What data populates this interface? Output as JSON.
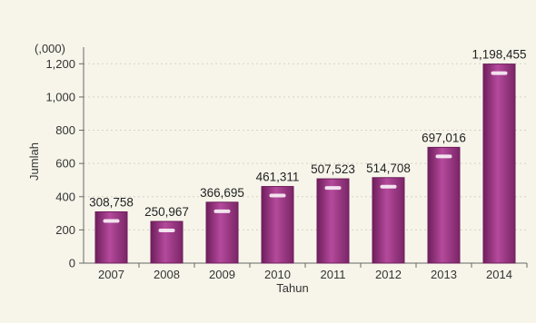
{
  "chart_data": {
    "type": "bar",
    "title": "",
    "unit_label": "(,000)",
    "xlabel": "Tahun",
    "ylabel": "Jumlah",
    "categories": [
      "2007",
      "2008",
      "2009",
      "2010",
      "2011",
      "2012",
      "2013",
      "2014"
    ],
    "values": [
      308758,
      250967,
      366695,
      461311,
      507523,
      514708,
      697016,
      1198455
    ],
    "value_labels": [
      "308,758",
      "250,967",
      "366,695",
      "461,311",
      "507,523",
      "514,708",
      "697,016",
      "1,198,455"
    ],
    "y_ticks": [
      0,
      200,
      400,
      600,
      800,
      1000,
      1200
    ],
    "y_tick_labels": [
      "0",
      "200",
      "400",
      "600",
      "800",
      "1,000",
      "1,200"
    ],
    "ylim": [
      0,
      1300
    ],
    "grid": true,
    "bar_color": "#a8408f",
    "bar_color_dark": "#6e1e5c",
    "bar_highlight": "#ffffff"
  }
}
